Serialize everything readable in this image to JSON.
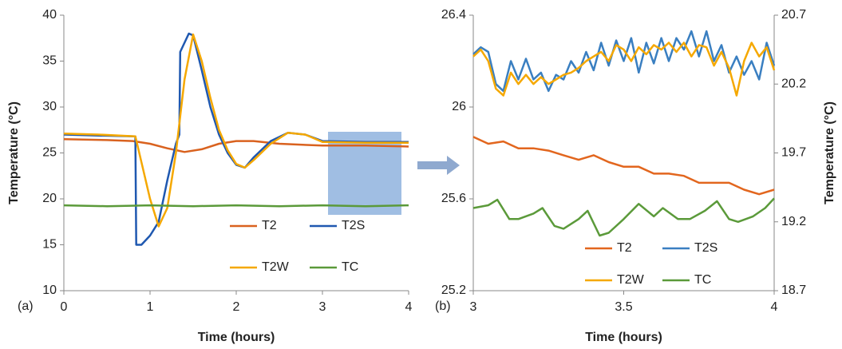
{
  "chart_data": [
    {
      "type": "line",
      "label": "(a)",
      "xlabel": "Time (hours)",
      "ylabel": "Temperature (°C)",
      "xlim": [
        0,
        4
      ],
      "xticks": [
        0,
        1,
        2,
        3,
        4
      ],
      "ylim": [
        10,
        40
      ],
      "yticks": [
        10,
        15,
        20,
        25,
        30,
        35,
        40
      ],
      "series": [
        {
          "name": "T2",
          "color": "#d9621f",
          "x": [
            0,
            0.5,
            0.8,
            1,
            1.2,
            1.4,
            1.6,
            1.8,
            2,
            2.2,
            2.5,
            3,
            3.5,
            4
          ],
          "values": [
            26.5,
            26.4,
            26.3,
            26.0,
            25.5,
            25.1,
            25.4,
            26.0,
            26.3,
            26.3,
            26.0,
            25.8,
            25.8,
            25.7
          ]
        },
        {
          "name": "T2S",
          "color": "#1f58b0",
          "x": [
            0,
            0.4,
            0.83,
            0.84,
            0.9,
            1.0,
            1.1,
            1.2,
            1.3,
            1.34,
            1.35,
            1.45,
            1.5,
            1.6,
            1.7,
            1.8,
            1.9,
            2.0,
            2.1,
            2.2,
            2.4,
            2.6,
            2.8,
            3,
            3.5,
            4
          ],
          "values": [
            27,
            26.9,
            26.8,
            15,
            15,
            16,
            17.5,
            22,
            26,
            27,
            36,
            38,
            37.8,
            34,
            30,
            27,
            25,
            23.7,
            23.4,
            24.5,
            26.3,
            27.2,
            27,
            26.3,
            26.2,
            26.2
          ]
        },
        {
          "name": "T2W",
          "color": "#f5a800",
          "x": [
            0,
            0.4,
            0.83,
            0.9,
            1.0,
            1.1,
            1.2,
            1.3,
            1.4,
            1.5,
            1.6,
            1.7,
            1.8,
            1.9,
            2.0,
            2.1,
            2.2,
            2.4,
            2.6,
            2.8,
            3,
            3.5,
            4
          ],
          "values": [
            27.1,
            27.0,
            26.8,
            24,
            20,
            17,
            19,
            25,
            33,
            37.9,
            35,
            31,
            27.5,
            25.3,
            23.8,
            23.4,
            24.2,
            26,
            27.2,
            27,
            26.2,
            26.1,
            26.1
          ]
        },
        {
          "name": "TC",
          "color": "#5b9a3a",
          "x": [
            0,
            0.5,
            1,
            1.5,
            2,
            2.5,
            3,
            3.5,
            4
          ],
          "values": [
            19.3,
            19.2,
            19.3,
            19.2,
            19.3,
            19.2,
            19.3,
            19.2,
            19.3
          ]
        }
      ]
    },
    {
      "type": "line",
      "label": "(b)",
      "xlabel": "Time (hours)",
      "y2label": "Temperature (°C)",
      "xlim": [
        3,
        4
      ],
      "xticks": [
        3,
        3.5,
        4
      ],
      "ylim": [
        25.2,
        26.4
      ],
      "yticks": [
        25.2,
        25.6,
        26,
        26.4
      ],
      "y2lim": [
        18.7,
        20.7
      ],
      "y2ticks": [
        18.7,
        19.2,
        19.7,
        20.2,
        20.7
      ],
      "series": [
        {
          "name": "T2",
          "color": "#e2661e",
          "x": [
            3,
            3.05,
            3.1,
            3.15,
            3.2,
            3.25,
            3.3,
            3.35,
            3.4,
            3.45,
            3.5,
            3.55,
            3.6,
            3.65,
            3.7,
            3.75,
            3.8,
            3.85,
            3.9,
            3.95,
            4
          ],
          "values": [
            25.87,
            25.84,
            25.85,
            25.82,
            25.82,
            25.81,
            25.79,
            25.77,
            25.79,
            25.76,
            25.74,
            25.74,
            25.71,
            25.71,
            25.7,
            25.67,
            25.67,
            25.67,
            25.64,
            25.62,
            25.64
          ]
        },
        {
          "name": "T2S",
          "color": "#3a7fc1",
          "x": [
            3,
            3.025,
            3.05,
            3.075,
            3.1,
            3.125,
            3.15,
            3.175,
            3.2,
            3.225,
            3.25,
            3.275,
            3.3,
            3.325,
            3.35,
            3.375,
            3.4,
            3.425,
            3.45,
            3.475,
            3.5,
            3.525,
            3.55,
            3.575,
            3.6,
            3.625,
            3.65,
            3.675,
            3.7,
            3.725,
            3.75,
            3.775,
            3.8,
            3.825,
            3.85,
            3.875,
            3.9,
            3.925,
            3.95,
            3.975,
            4
          ],
          "values": [
            26.23,
            26.26,
            26.24,
            26.1,
            26.07,
            26.2,
            26.12,
            26.21,
            26.12,
            26.15,
            26.07,
            26.14,
            26.12,
            26.2,
            26.15,
            26.24,
            26.16,
            26.28,
            26.18,
            26.29,
            26.2,
            26.3,
            26.15,
            26.28,
            26.19,
            26.3,
            26.2,
            26.3,
            26.25,
            26.33,
            26.22,
            26.33,
            26.2,
            26.27,
            26.15,
            26.22,
            26.14,
            26.2,
            26.12,
            26.28,
            26.18
          ]
        },
        {
          "name": "T2W",
          "color": "#f5a800",
          "x": [
            3,
            3.025,
            3.05,
            3.075,
            3.1,
            3.125,
            3.15,
            3.175,
            3.2,
            3.225,
            3.25,
            3.275,
            3.3,
            3.325,
            3.35,
            3.375,
            3.4,
            3.425,
            3.45,
            3.475,
            3.5,
            3.525,
            3.55,
            3.575,
            3.6,
            3.625,
            3.65,
            3.675,
            3.7,
            3.725,
            3.75,
            3.775,
            3.8,
            3.825,
            3.85,
            3.875,
            3.9,
            3.925,
            3.95,
            3.975,
            4
          ],
          "values": [
            26.22,
            26.25,
            26.2,
            26.08,
            26.05,
            26.15,
            26.1,
            26.14,
            26.1,
            26.13,
            26.1,
            26.12,
            26.14,
            26.15,
            26.17,
            26.2,
            26.22,
            26.24,
            26.2,
            26.27,
            26.25,
            26.2,
            26.26,
            26.23,
            26.27,
            26.25,
            26.28,
            26.24,
            26.28,
            26.22,
            26.27,
            26.26,
            26.18,
            26.24,
            26.17,
            26.05,
            26.2,
            26.28,
            26.22,
            26.26,
            26.16
          ]
        },
        {
          "name": "TC",
          "color": "#5b9a3a",
          "axis": "y2",
          "x": [
            3,
            3.05,
            3.08,
            3.12,
            3.15,
            3.2,
            3.23,
            3.27,
            3.3,
            3.35,
            3.38,
            3.42,
            3.45,
            3.5,
            3.55,
            3.6,
            3.63,
            3.68,
            3.72,
            3.77,
            3.81,
            3.85,
            3.88,
            3.93,
            3.97,
            4
          ],
          "values": [
            19.3,
            19.32,
            19.36,
            19.22,
            19.22,
            19.26,
            19.3,
            19.17,
            19.15,
            19.22,
            19.28,
            19.1,
            19.12,
            19.22,
            19.33,
            19.24,
            19.3,
            19.22,
            19.22,
            19.28,
            19.35,
            19.22,
            19.2,
            19.24,
            19.3,
            19.37
          ]
        }
      ]
    }
  ]
}
